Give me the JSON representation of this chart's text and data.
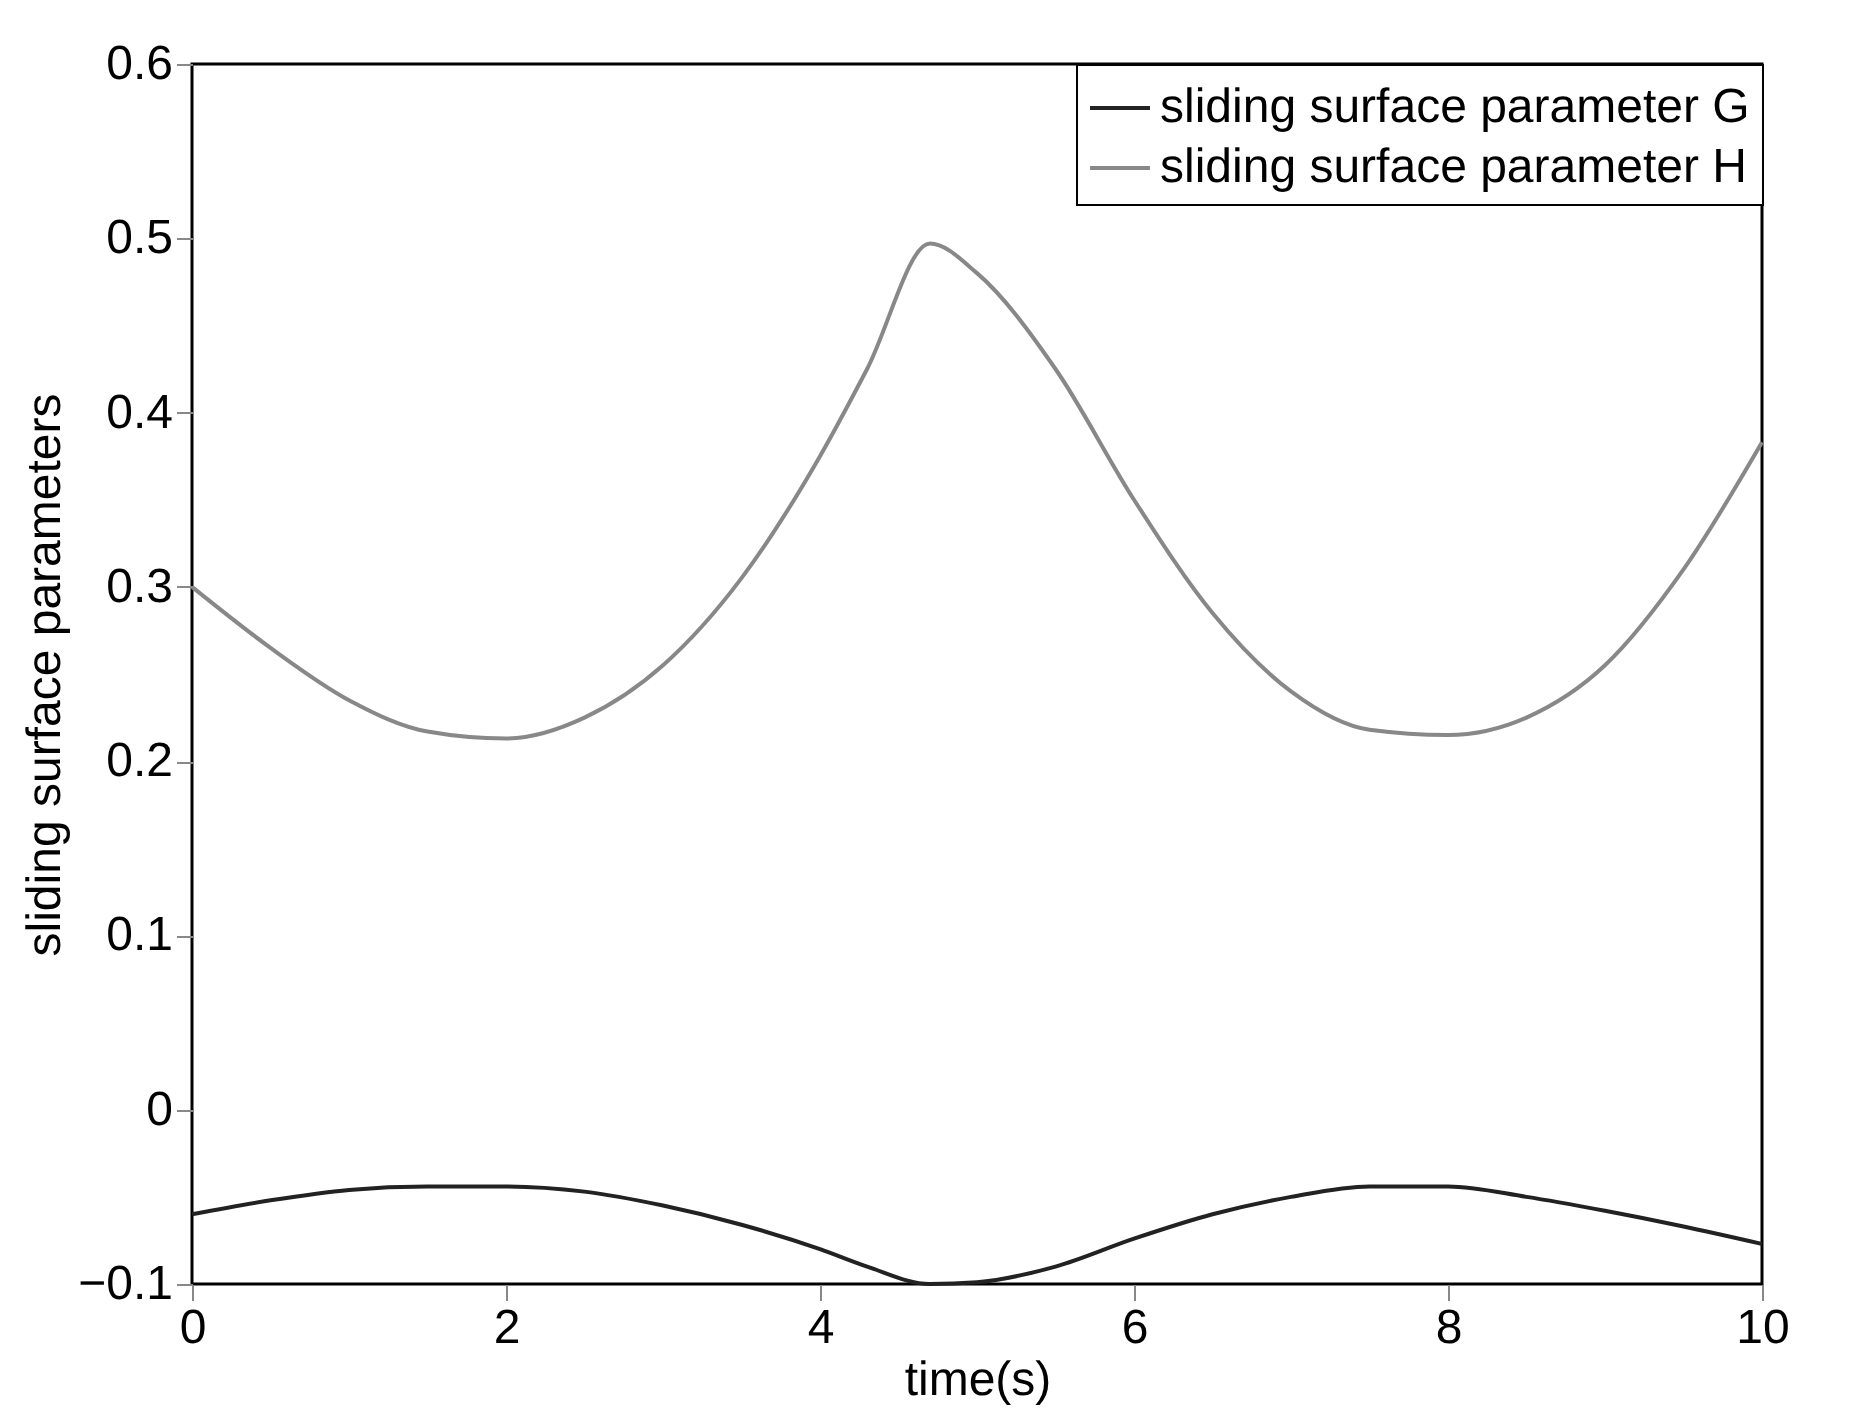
{
  "chart_data": {
    "type": "line",
    "xlabel": "time(s)",
    "ylabel": "sliding surface parameters",
    "x": [
      0,
      0.5,
      1,
      1.5,
      2,
      2.5,
      3,
      3.5,
      4,
      4.3,
      4.7,
      5,
      5.5,
      6,
      6.5,
      7,
      7.5,
      8,
      8.5,
      9,
      9.5,
      10
    ],
    "series": [
      {
        "name": "sliding surface parameter G",
        "color": "#222222",
        "values": [
          -0.06,
          -0.052,
          -0.046,
          -0.044,
          -0.044,
          -0.047,
          -0.055,
          -0.066,
          -0.08,
          -0.09,
          -0.1,
          -0.099,
          -0.09,
          -0.074,
          -0.06,
          -0.05,
          -0.044,
          -0.044,
          -0.05,
          -0.058,
          -0.067,
          -0.077
        ]
      },
      {
        "name": "sliding surface parameter H",
        "color": "#888888",
        "values": [
          0.3,
          0.265,
          0.235,
          0.217,
          0.213,
          0.225,
          0.255,
          0.305,
          0.375,
          0.425,
          0.497,
          0.48,
          0.425,
          0.35,
          0.285,
          0.24,
          0.218,
          0.215,
          0.225,
          0.255,
          0.31,
          0.383
        ]
      }
    ],
    "xlim": [
      0,
      10
    ],
    "xticks": [
      0,
      2,
      4,
      6,
      8,
      10
    ],
    "ylim": [
      -0.1,
      0.6
    ],
    "yticks": [
      -0.1,
      0,
      0.1,
      0.2,
      0.3,
      0.4,
      0.5,
      0.6
    ],
    "grid": false,
    "legend": "top right",
    "marker": "none",
    "line_style": "solid"
  }
}
